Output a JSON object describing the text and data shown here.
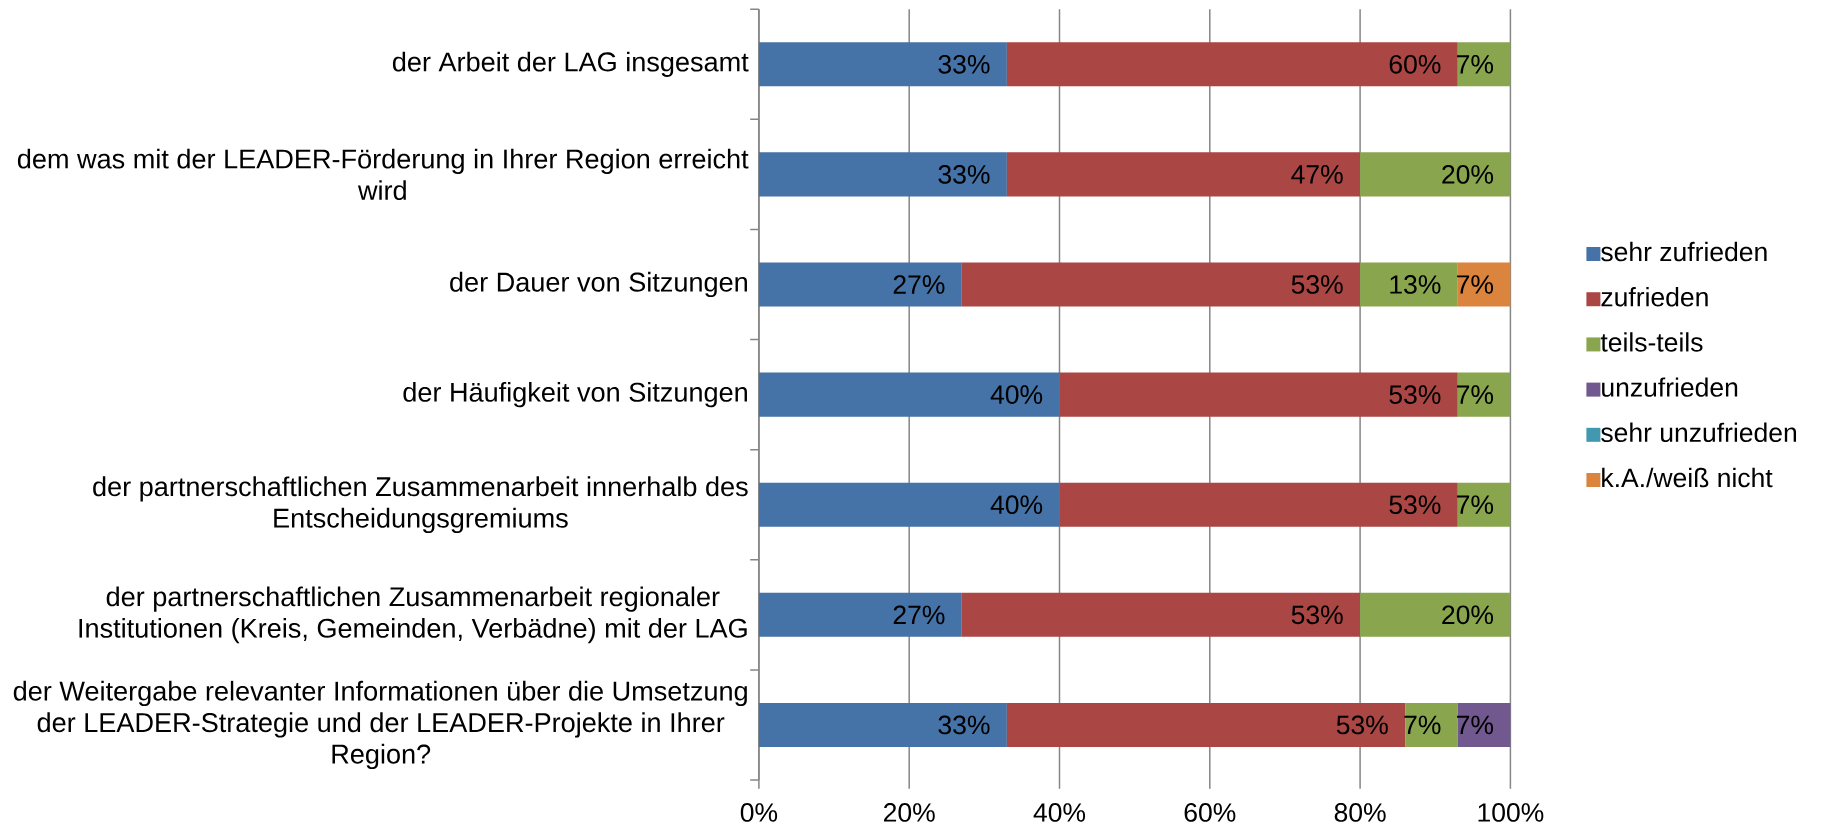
{
  "chart_data": {
    "type": "bar",
    "orientation": "horizontal",
    "stacked": true,
    "categories": [
      "der Arbeit der LAG insgesamt",
      "dem was mit der LEADER-Förderung in Ihrer Region erreicht wird",
      "der Dauer von Sitzungen",
      "der Häufigkeit von Sitzungen",
      "der partnerschaftlichen Zusammenarbeit innerhalb des Entscheidungsgremiums",
      "der partnerschaftlichen Zusammenarbeit regionaler Institutionen (Kreis, Gemeinden, Verbädne) mit der LAG",
      "der Weitergabe relevanter Informationen über die Umsetzung der LEADER-Strategie und der LEADER-Projekte in Ihrer Region?"
    ],
    "series": [
      {
        "name": "sehr zufrieden",
        "color": "#4572a7",
        "values": [
          33,
          33,
          27,
          40,
          40,
          27,
          33
        ],
        "value_labels": [
          "33%",
          "33%",
          "27%",
          "40%",
          "40%",
          "27%",
          "33%"
        ]
      },
      {
        "name": "zufrieden",
        "color": "#aa4643",
        "values": [
          60,
          47,
          53,
          53,
          53,
          53,
          53
        ],
        "value_labels": [
          "60%",
          "47%",
          "53%",
          "53%",
          "53%",
          "53%",
          "53%"
        ]
      },
      {
        "name": "teils-teils",
        "color": "#89a54e",
        "values": [
          7,
          20,
          13,
          7,
          7,
          20,
          7
        ],
        "value_labels": [
          "7%",
          "20%",
          "13%",
          "7%",
          "7%",
          "20%",
          "7%"
        ]
      },
      {
        "name": "unzufrieden",
        "color": "#71588f",
        "values": [
          null,
          null,
          null,
          null,
          null,
          null,
          7
        ],
        "value_labels": [
          null,
          null,
          null,
          null,
          null,
          null,
          "7%"
        ]
      },
      {
        "name": "sehr unzufrieden",
        "color": "#4198af",
        "values": [
          null,
          null,
          null,
          null,
          null,
          null,
          null
        ]
      },
      {
        "name": "k.A./weiß nicht",
        "color": "#db843d",
        "values": [
          null,
          null,
          7,
          null,
          null,
          null,
          null
        ],
        "value_labels": [
          null,
          null,
          "7%",
          null,
          null,
          null,
          null
        ]
      }
    ],
    "xlim": [
      0,
      100
    ],
    "xticks": [
      {
        "value": 0,
        "label": "0%"
      },
      {
        "value": 20,
        "label": "20%"
      },
      {
        "value": 40,
        "label": "40%"
      },
      {
        "value": 60,
        "label": "60%"
      },
      {
        "value": 80,
        "label": "80%"
      },
      {
        "value": 100,
        "label": "100%"
      }
    ],
    "grid": "x",
    "legend": "right"
  }
}
